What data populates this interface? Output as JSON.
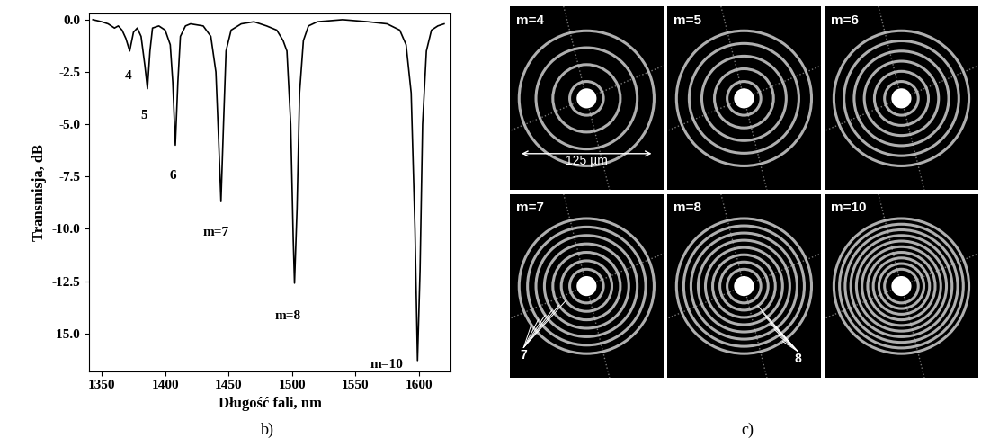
{
  "chart_data": {
    "type": "line",
    "x_label": "Długość fali, nm",
    "y_label": "Transmisja, dB",
    "color": "#000000",
    "x": [
      1343,
      1350,
      1355,
      1360,
      1363,
      1366,
      1369,
      1372,
      1375,
      1378,
      1381,
      1384,
      1386,
      1388,
      1390,
      1395,
      1400,
      1404,
      1406,
      1408,
      1410,
      1412,
      1416,
      1420,
      1430,
      1436,
      1440,
      1442,
      1444,
      1446,
      1448,
      1452,
      1460,
      1470,
      1480,
      1488,
      1493,
      1496,
      1499,
      1501,
      1502,
      1504,
      1506,
      1509,
      1513,
      1520,
      1540,
      1560,
      1575,
      1585,
      1590,
      1594,
      1597,
      1599,
      1601,
      1603,
      1606,
      1610,
      1615,
      1620
    ],
    "values": [
      0.0,
      -0.1,
      -0.2,
      -0.4,
      -0.3,
      -0.5,
      -0.9,
      -1.5,
      -0.6,
      -0.4,
      -0.8,
      -2.2,
      -3.3,
      -1.5,
      -0.4,
      -0.3,
      -0.5,
      -1.2,
      -3.0,
      -6.0,
      -3.0,
      -0.8,
      -0.3,
      -0.2,
      -0.3,
      -0.8,
      -2.5,
      -5.5,
      -8.7,
      -5.0,
      -1.5,
      -0.5,
      -0.2,
      -0.1,
      -0.3,
      -0.5,
      -1.0,
      -1.5,
      -5.0,
      -10.5,
      -12.6,
      -9.0,
      -3.5,
      -1.0,
      -0.3,
      -0.1,
      0.0,
      -0.1,
      -0.2,
      -0.5,
      -1.2,
      -3.5,
      -10.0,
      -16.3,
      -12.0,
      -5.0,
      -1.5,
      -0.5,
      -0.3,
      -0.2
    ],
    "xlim": [
      1340,
      1625
    ],
    "ylim": [
      -16.8,
      0.3
    ],
    "xticks": [
      1350,
      1400,
      1450,
      1500,
      1550,
      1600
    ],
    "yticks": [
      {
        "value": 0.0,
        "label": "0.0"
      },
      {
        "value": -2.5,
        "label": "-2.5"
      },
      {
        "value": -5.0,
        "label": "-5.0"
      },
      {
        "value": -7.5,
        "label": "-7.5"
      },
      {
        "value": -10.0,
        "label": "-10.0"
      },
      {
        "value": -12.5,
        "label": "-12.5"
      },
      {
        "value": -15.0,
        "label": "-15.0"
      }
    ],
    "annotations": [
      {
        "text": "4",
        "x": 1371,
        "y": -2.4
      },
      {
        "text": "5",
        "x": 1383,
        "y": -4.3
      },
      {
        "text": "6",
        "x": 1406,
        "y": -7.2
      },
      {
        "text": "m=7",
        "x": 1440,
        "y": -9.9
      },
      {
        "text": "m=8",
        "x": 1497,
        "y": -13.9
      },
      {
        "text": "m=10",
        "x": 1575,
        "y": -16.2
      }
    ]
  },
  "panel_labels": [
    "b)",
    "c)"
  ],
  "images": [
    {
      "label": "m=4",
      "rings": 4,
      "scale_label": "125 µm"
    },
    {
      "label": "m=5",
      "rings": 5
    },
    {
      "label": "m=6",
      "rings": 6
    },
    {
      "label": "m=7",
      "rings": 7,
      "pointer_label": "7"
    },
    {
      "label": "m=8",
      "rings": 8,
      "pointer_label": "8"
    },
    {
      "label": "m=10",
      "rings": 10
    }
  ]
}
